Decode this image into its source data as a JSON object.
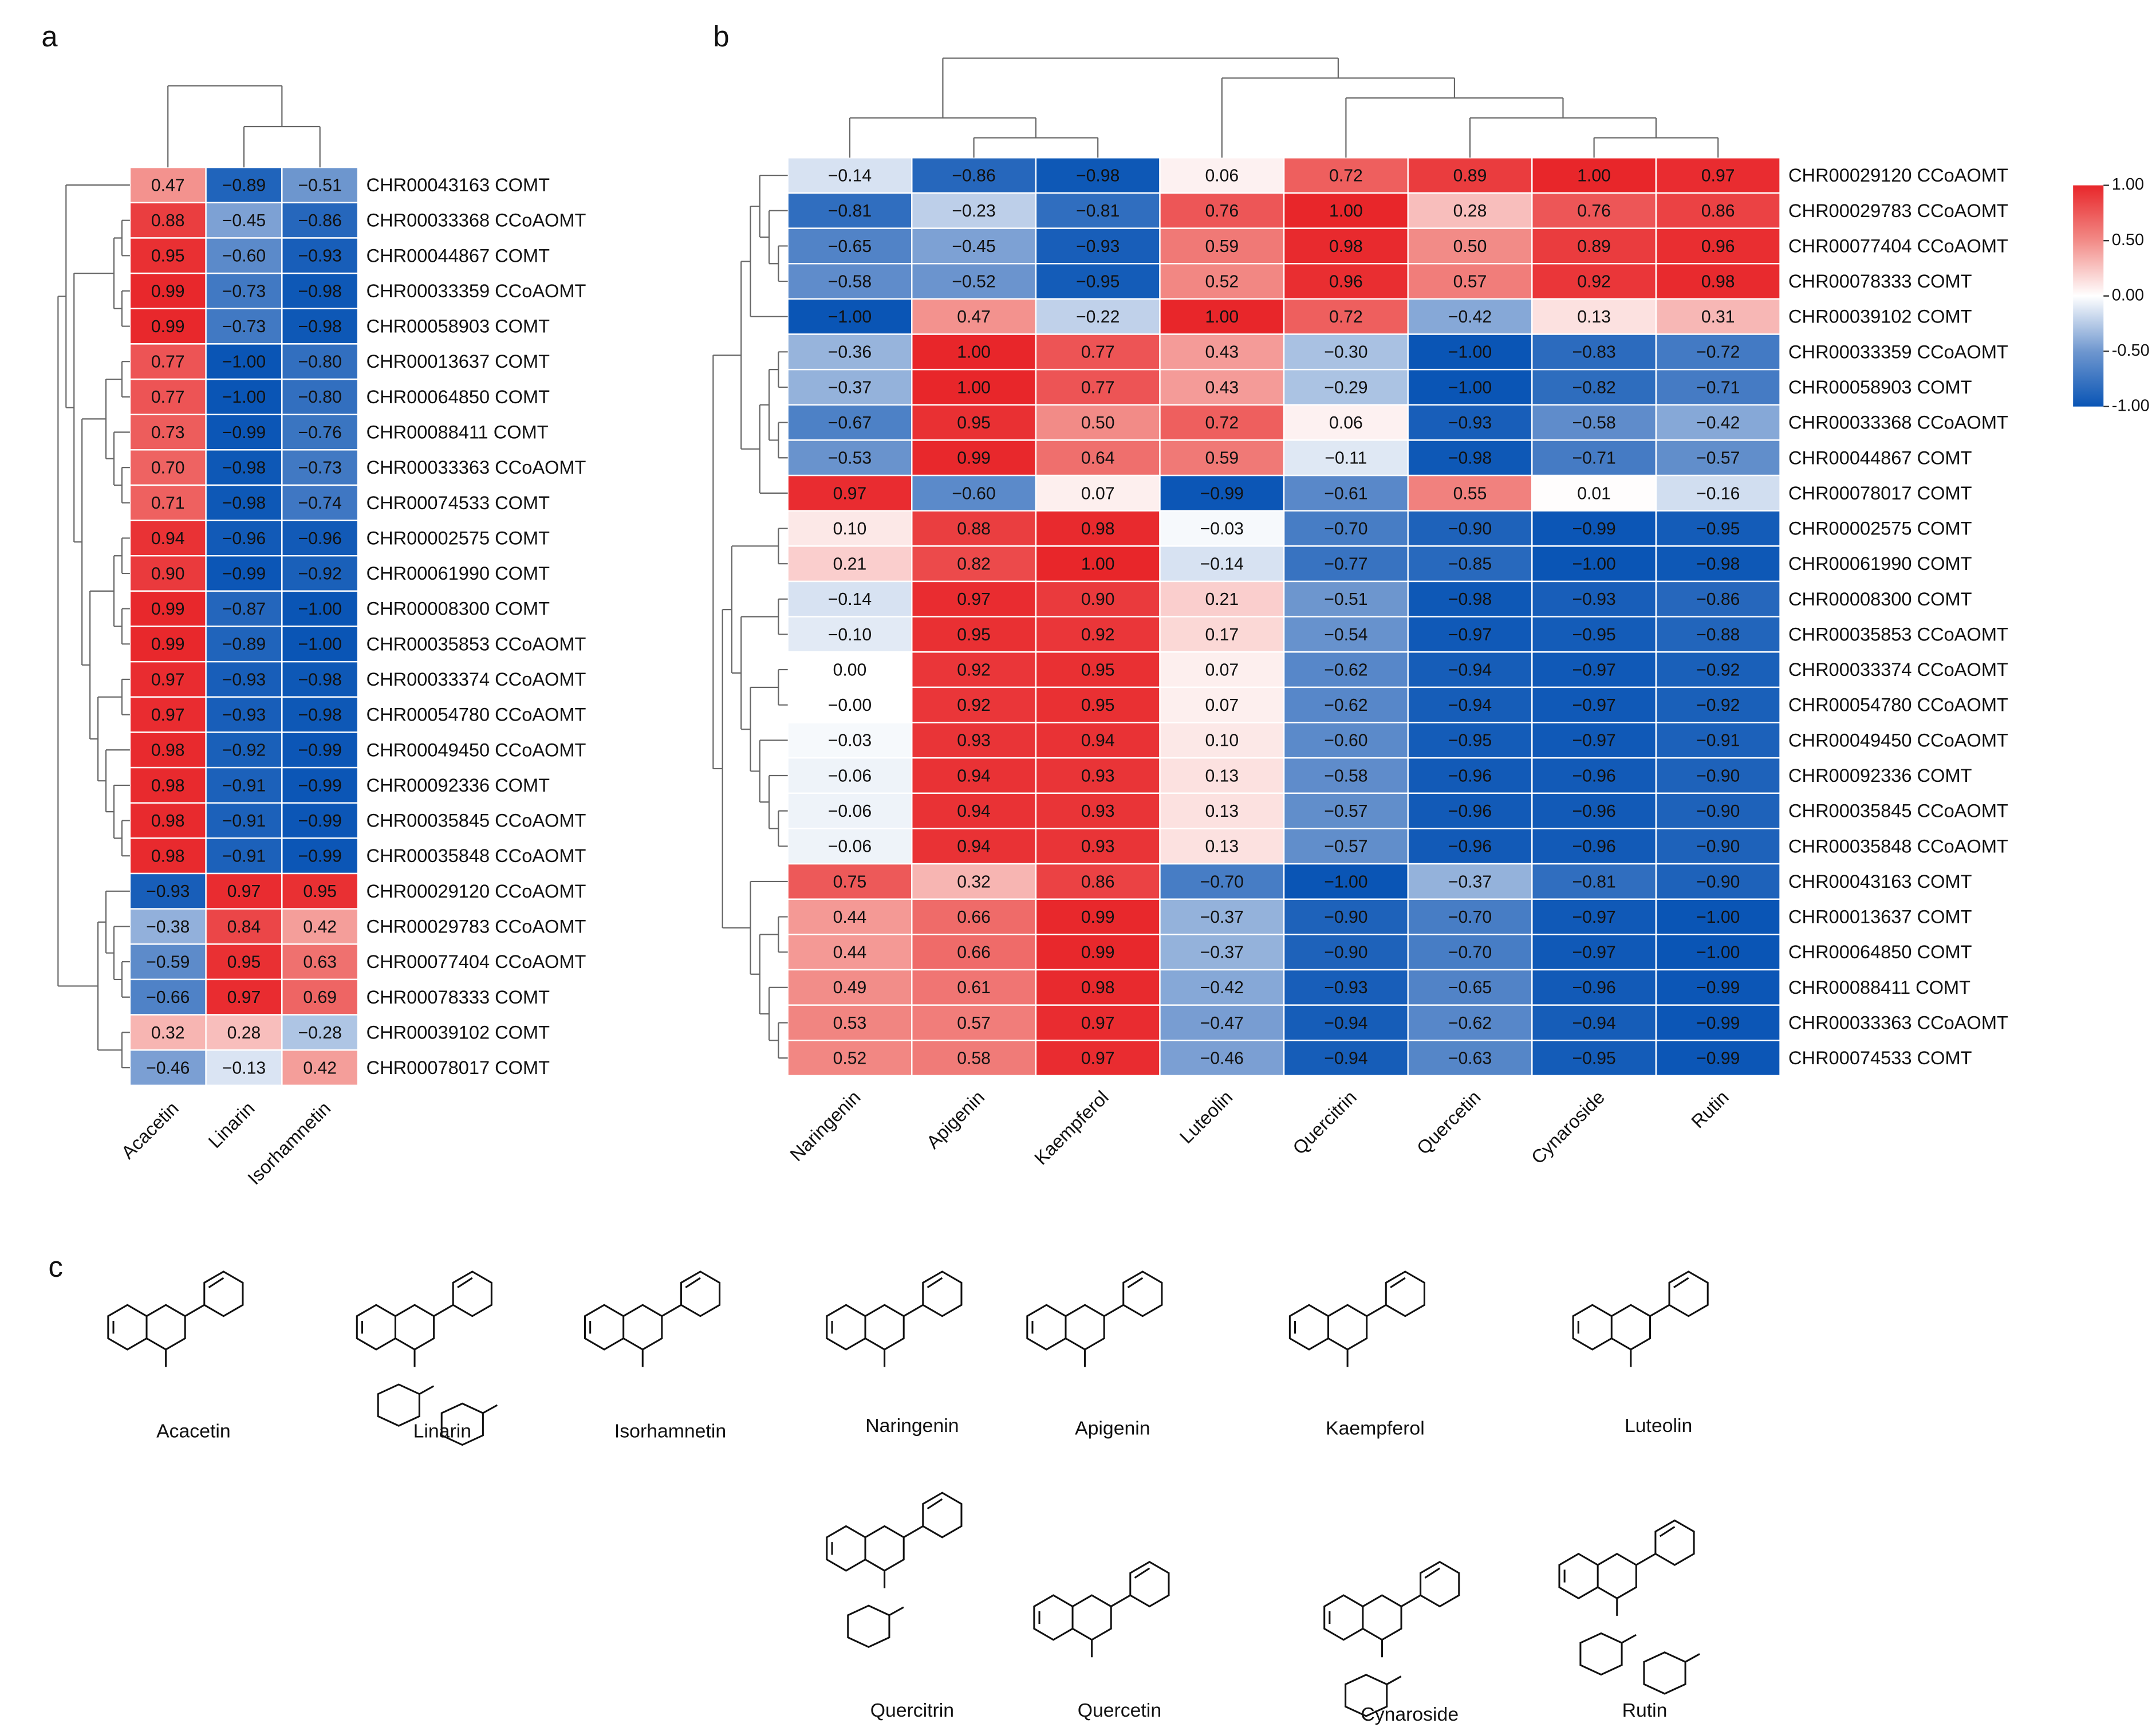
{
  "panel_labels": [
    "a",
    "b",
    "c"
  ],
  "chart_data": [
    {
      "type": "heatmap",
      "columns": [
        "Acacetin",
        "Linarin",
        "Isorhamnetin"
      ],
      "rows": [
        "CHR00043163 COMT",
        "CHR00033368 CCoAOMT",
        "CHR00044867 COMT",
        "CHR00033359 CCoAOMT",
        "CHR00058903 COMT",
        "CHR00013637 COMT",
        "CHR00064850 COMT",
        "CHR00088411 COMT",
        "CHR00033363 CCoAOMT",
        "CHR00074533 COMT",
        "CHR00002575 COMT",
        "CHR00061990 COMT",
        "CHR00008300 COMT",
        "CHR00035853 CCoAOMT",
        "CHR00033374 CCoAOMT",
        "CHR00054780 CCoAOMT",
        "CHR00049450 CCoAOMT",
        "CHR00092336 COMT",
        "CHR00035845 CCoAOMT",
        "CHR00035848 CCoAOMT",
        "CHR00029120 CCoAOMT",
        "CHR00029783 CCoAOMT",
        "CHR00077404 CCoAOMT",
        "CHR00078333 COMT",
        "CHR00039102 COMT",
        "CHR00078017 COMT"
      ],
      "values": [
        [
          0.47,
          -0.89,
          -0.51
        ],
        [
          0.88,
          -0.45,
          -0.86
        ],
        [
          0.95,
          -0.6,
          -0.93
        ],
        [
          0.99,
          -0.73,
          -0.98
        ],
        [
          0.99,
          -0.73,
          -0.98
        ],
        [
          0.77,
          -1.0,
          -0.8
        ],
        [
          0.77,
          -1.0,
          -0.8
        ],
        [
          0.73,
          -0.99,
          -0.76
        ],
        [
          0.7,
          -0.98,
          -0.73
        ],
        [
          0.71,
          -0.98,
          -0.74
        ],
        [
          0.94,
          -0.96,
          -0.96
        ],
        [
          0.9,
          -0.99,
          -0.92
        ],
        [
          0.99,
          -0.87,
          -1.0
        ],
        [
          0.99,
          -0.89,
          -1.0
        ],
        [
          0.97,
          -0.93,
          -0.98
        ],
        [
          0.97,
          -0.93,
          -0.98
        ],
        [
          0.98,
          -0.92,
          -0.99
        ],
        [
          0.98,
          -0.91,
          -0.99
        ],
        [
          0.98,
          -0.91,
          -0.99
        ],
        [
          0.98,
          -0.91,
          -0.99
        ],
        [
          -0.93,
          0.97,
          0.95
        ],
        [
          -0.38,
          0.84,
          0.42
        ],
        [
          -0.59,
          0.95,
          0.63
        ],
        [
          -0.66,
          0.97,
          0.69
        ],
        [
          0.32,
          0.28,
          -0.28
        ],
        [
          -0.46,
          -0.13,
          0.42
        ]
      ],
      "value_labels": [
        [
          "0.47",
          "−0.89",
          "−0.51"
        ],
        [
          "0.88",
          "−0.45",
          "−0.86"
        ],
        [
          "0.95",
          "−0.60",
          "−0.93"
        ],
        [
          "0.99",
          "−0.73",
          "−0.98"
        ],
        [
          "0.99",
          "−0.73",
          "−0.98"
        ],
        [
          "0.77",
          "−1.00",
          "−0.80"
        ],
        [
          "0.77",
          "−1.00",
          "−0.80"
        ],
        [
          "0.73",
          "−0.99",
          "−0.76"
        ],
        [
          "0.70",
          "−0.98",
          "−0.73"
        ],
        [
          "0.71",
          "−0.98",
          "−0.74"
        ],
        [
          "0.94",
          "−0.96",
          "−0.96"
        ],
        [
          "0.90",
          "−0.99",
          "−0.92"
        ],
        [
          "0.99",
          "−0.87",
          "−1.00"
        ],
        [
          "0.99",
          "−0.89",
          "−1.00"
        ],
        [
          "0.97",
          "−0.93",
          "−0.98"
        ],
        [
          "0.97",
          "−0.93",
          "−0.98"
        ],
        [
          "0.98",
          "−0.92",
          "−0.99"
        ],
        [
          "0.98",
          "−0.91",
          "−0.99"
        ],
        [
          "0.98",
          "−0.91",
          "−0.99"
        ],
        [
          "0.98",
          "−0.91",
          "−0.99"
        ],
        [
          "−0.93",
          "0.97",
          "0.95"
        ],
        [
          "−0.38",
          "0.84",
          "0.42"
        ],
        [
          "−0.59",
          "0.95",
          "0.63"
        ],
        [
          "−0.66",
          "0.97",
          "0.69"
        ],
        [
          "0.32",
          "0.28",
          "−0.28"
        ],
        [
          "−0.46",
          "−0.13",
          "0.42"
        ]
      ],
      "zlim": [
        -1,
        1
      ],
      "colors": [
        "#0a55b5",
        "#6f97cf",
        "#ffffff",
        "#f28b87",
        "#e8262a"
      ]
    },
    {
      "type": "heatmap",
      "columns": [
        "Naringenin",
        "Apigenin",
        "Kaempferol",
        "Luteolin",
        "Quercitrin",
        "Quercetin",
        "Cynaroside",
        "Rutin"
      ],
      "rows": [
        "CHR00029120 CCoAOMT",
        "CHR00029783 CCoAOMT",
        "CHR00077404 CCoAOMT",
        "CHR00078333 COMT",
        "CHR00039102 COMT",
        "CHR00033359 CCoAOMT",
        "CHR00058903 COMT",
        "CHR00033368 CCoAOMT",
        "CHR00044867 COMT",
        "CHR00078017 COMT",
        "CHR00002575 COMT",
        "CHR00061990 COMT",
        "CHR00008300 COMT",
        "CHR00035853 CCoAOMT",
        "CHR00033374 CCoAOMT",
        "CHR00054780 CCoAOMT",
        "CHR00049450 CCoAOMT",
        "CHR00092336 COMT",
        "CHR00035845 CCoAOMT",
        "CHR00035848 CCoAOMT",
        "CHR00043163 COMT",
        "CHR00013637 COMT",
        "CHR00064850 COMT",
        "CHR00088411 COMT",
        "CHR00033363 CCoAOMT",
        "CHR00074533 COMT"
      ],
      "values": [
        [
          -0.14,
          -0.86,
          -0.98,
          0.06,
          0.72,
          0.89,
          1.0,
          0.97
        ],
        [
          -0.81,
          -0.23,
          -0.81,
          0.76,
          1.0,
          0.28,
          0.76,
          0.86
        ],
        [
          -0.65,
          -0.45,
          -0.93,
          0.59,
          0.98,
          0.5,
          0.89,
          0.96
        ],
        [
          -0.58,
          -0.52,
          -0.95,
          0.52,
          0.96,
          0.57,
          0.92,
          0.98
        ],
        [
          -1.0,
          0.47,
          -0.22,
          1.0,
          0.72,
          -0.42,
          0.13,
          0.31
        ],
        [
          -0.36,
          1.0,
          0.77,
          0.43,
          -0.3,
          -1.0,
          -0.83,
          -0.72
        ],
        [
          -0.37,
          1.0,
          0.77,
          0.43,
          -0.29,
          -1.0,
          -0.82,
          -0.71
        ],
        [
          -0.67,
          0.95,
          0.5,
          0.72,
          0.06,
          -0.93,
          -0.58,
          -0.42
        ],
        [
          -0.53,
          0.99,
          0.64,
          0.59,
          -0.11,
          -0.98,
          -0.71,
          -0.57
        ],
        [
          0.97,
          -0.6,
          0.07,
          -0.99,
          -0.61,
          0.55,
          0.01,
          -0.16
        ],
        [
          0.1,
          0.88,
          0.98,
          -0.03,
          -0.7,
          -0.9,
          -0.99,
          -0.95
        ],
        [
          0.21,
          0.82,
          1.0,
          -0.14,
          -0.77,
          -0.85,
          -1.0,
          -0.98
        ],
        [
          -0.14,
          0.97,
          0.9,
          0.21,
          -0.51,
          -0.98,
          -0.93,
          -0.86
        ],
        [
          -0.1,
          0.95,
          0.92,
          0.17,
          -0.54,
          -0.97,
          -0.95,
          -0.88
        ],
        [
          0.0,
          0.92,
          0.95,
          0.07,
          -0.62,
          -0.94,
          -0.97,
          -0.92
        ],
        [
          -0.0,
          0.92,
          0.95,
          0.07,
          -0.62,
          -0.94,
          -0.97,
          -0.92
        ],
        [
          -0.03,
          0.93,
          0.94,
          0.1,
          -0.6,
          -0.95,
          -0.97,
          -0.91
        ],
        [
          -0.06,
          0.94,
          0.93,
          0.13,
          -0.58,
          -0.96,
          -0.96,
          -0.9
        ],
        [
          -0.06,
          0.94,
          0.93,
          0.13,
          -0.57,
          -0.96,
          -0.96,
          -0.9
        ],
        [
          -0.06,
          0.94,
          0.93,
          0.13,
          -0.57,
          -0.96,
          -0.96,
          -0.9
        ],
        [
          0.75,
          0.32,
          0.86,
          -0.7,
          -1.0,
          -0.37,
          -0.81,
          -0.9
        ],
        [
          0.44,
          0.66,
          0.99,
          -0.37,
          -0.9,
          -0.7,
          -0.97,
          -1.0
        ],
        [
          0.44,
          0.66,
          0.99,
          -0.37,
          -0.9,
          -0.7,
          -0.97,
          -1.0
        ],
        [
          0.49,
          0.61,
          0.98,
          -0.42,
          -0.93,
          -0.65,
          -0.96,
          -0.99
        ],
        [
          0.53,
          0.57,
          0.97,
          -0.47,
          -0.94,
          -0.62,
          -0.94,
          -0.99
        ],
        [
          0.52,
          0.58,
          0.97,
          -0.46,
          -0.94,
          -0.63,
          -0.95,
          -0.99
        ]
      ],
      "value_labels": [
        [
          "−0.14",
          "−0.86",
          "−0.98",
          "0.06",
          "0.72",
          "0.89",
          "1.00",
          "0.97"
        ],
        [
          "−0.81",
          "−0.23",
          "−0.81",
          "0.76",
          "1.00",
          "0.28",
          "0.76",
          "0.86"
        ],
        [
          "−0.65",
          "−0.45",
          "−0.93",
          "0.59",
          "0.98",
          "0.50",
          "0.89",
          "0.96"
        ],
        [
          "−0.58",
          "−0.52",
          "−0.95",
          "0.52",
          "0.96",
          "0.57",
          "0.92",
          "0.98"
        ],
        [
          "−1.00",
          "0.47",
          "−0.22",
          "1.00",
          "0.72",
          "−0.42",
          "0.13",
          "0.31"
        ],
        [
          "−0.36",
          "1.00",
          "0.77",
          "0.43",
          "−0.30",
          "−1.00",
          "−0.83",
          "−0.72"
        ],
        [
          "−0.37",
          "1.00",
          "0.77",
          "0.43",
          "−0.29",
          "−1.00",
          "−0.82",
          "−0.71"
        ],
        [
          "−0.67",
          "0.95",
          "0.50",
          "0.72",
          "0.06",
          "−0.93",
          "−0.58",
          "−0.42"
        ],
        [
          "−0.53",
          "0.99",
          "0.64",
          "0.59",
          "−0.11",
          "−0.98",
          "−0.71",
          "−0.57"
        ],
        [
          "0.97",
          "−0.60",
          "0.07",
          "−0.99",
          "−0.61",
          "0.55",
          "0.01",
          "−0.16"
        ],
        [
          "0.10",
          "0.88",
          "0.98",
          "−0.03",
          "−0.70",
          "−0.90",
          "−0.99",
          "−0.95"
        ],
        [
          "0.21",
          "0.82",
          "1.00",
          "−0.14",
          "−0.77",
          "−0.85",
          "−1.00",
          "−0.98"
        ],
        [
          "−0.14",
          "0.97",
          "0.90",
          "0.21",
          "−0.51",
          "−0.98",
          "−0.93",
          "−0.86"
        ],
        [
          "−0.10",
          "0.95",
          "0.92",
          "0.17",
          "−0.54",
          "−0.97",
          "−0.95",
          "−0.88"
        ],
        [
          "0.00",
          "0.92",
          "0.95",
          "0.07",
          "−0.62",
          "−0.94",
          "−0.97",
          "−0.92"
        ],
        [
          "−0.00",
          "0.92",
          "0.95",
          "0.07",
          "−0.62",
          "−0.94",
          "−0.97",
          "−0.92"
        ],
        [
          "−0.03",
          "0.93",
          "0.94",
          "0.10",
          "−0.60",
          "−0.95",
          "−0.97",
          "−0.91"
        ],
        [
          "−0.06",
          "0.94",
          "0.93",
          "0.13",
          "−0.58",
          "−0.96",
          "−0.96",
          "−0.90"
        ],
        [
          "−0.06",
          "0.94",
          "0.93",
          "0.13",
          "−0.57",
          "−0.96",
          "−0.96",
          "−0.90"
        ],
        [
          "−0.06",
          "0.94",
          "0.93",
          "0.13",
          "−0.57",
          "−0.96",
          "−0.96",
          "−0.90"
        ],
        [
          "0.75",
          "0.32",
          "0.86",
          "−0.70",
          "−1.00",
          "−0.37",
          "−0.81",
          "−0.90"
        ],
        [
          "0.44",
          "0.66",
          "0.99",
          "−0.37",
          "−0.90",
          "−0.70",
          "−0.97",
          "−1.00"
        ],
        [
          "0.44",
          "0.66",
          "0.99",
          "−0.37",
          "−0.90",
          "−0.70",
          "−0.97",
          "−1.00"
        ],
        [
          "0.49",
          "0.61",
          "0.98",
          "−0.42",
          "−0.93",
          "−0.65",
          "−0.96",
          "−0.99"
        ],
        [
          "0.53",
          "0.57",
          "0.97",
          "−0.47",
          "−0.94",
          "−0.62",
          "−0.94",
          "−0.99"
        ],
        [
          "0.52",
          "0.58",
          "0.97",
          "−0.46",
          "−0.94",
          "−0.63",
          "−0.95",
          "−0.99"
        ]
      ],
      "zlim": [
        -1,
        1
      ],
      "zticks": [
        {
          "value": 1,
          "label": "1.00"
        },
        {
          "value": 0.5,
          "label": "0.50"
        },
        {
          "value": 0,
          "label": "0.00"
        },
        {
          "value": -0.5,
          "label": "-0.50"
        },
        {
          "value": -1,
          "label": "-1.00"
        }
      ],
      "colors": [
        "#0a55b5",
        "#6f97cf",
        "#ffffff",
        "#f28b87",
        "#e8262a"
      ]
    }
  ],
  "structures": {
    "names": [
      "Acacetin",
      "Linarin",
      "Isorhamnetin",
      "Naringenin",
      "Apigenin",
      "Kaempferol",
      "Luteolin",
      "Quercitrin",
      "Quercetin",
      "Cynaroside",
      "Rutin"
    ]
  }
}
